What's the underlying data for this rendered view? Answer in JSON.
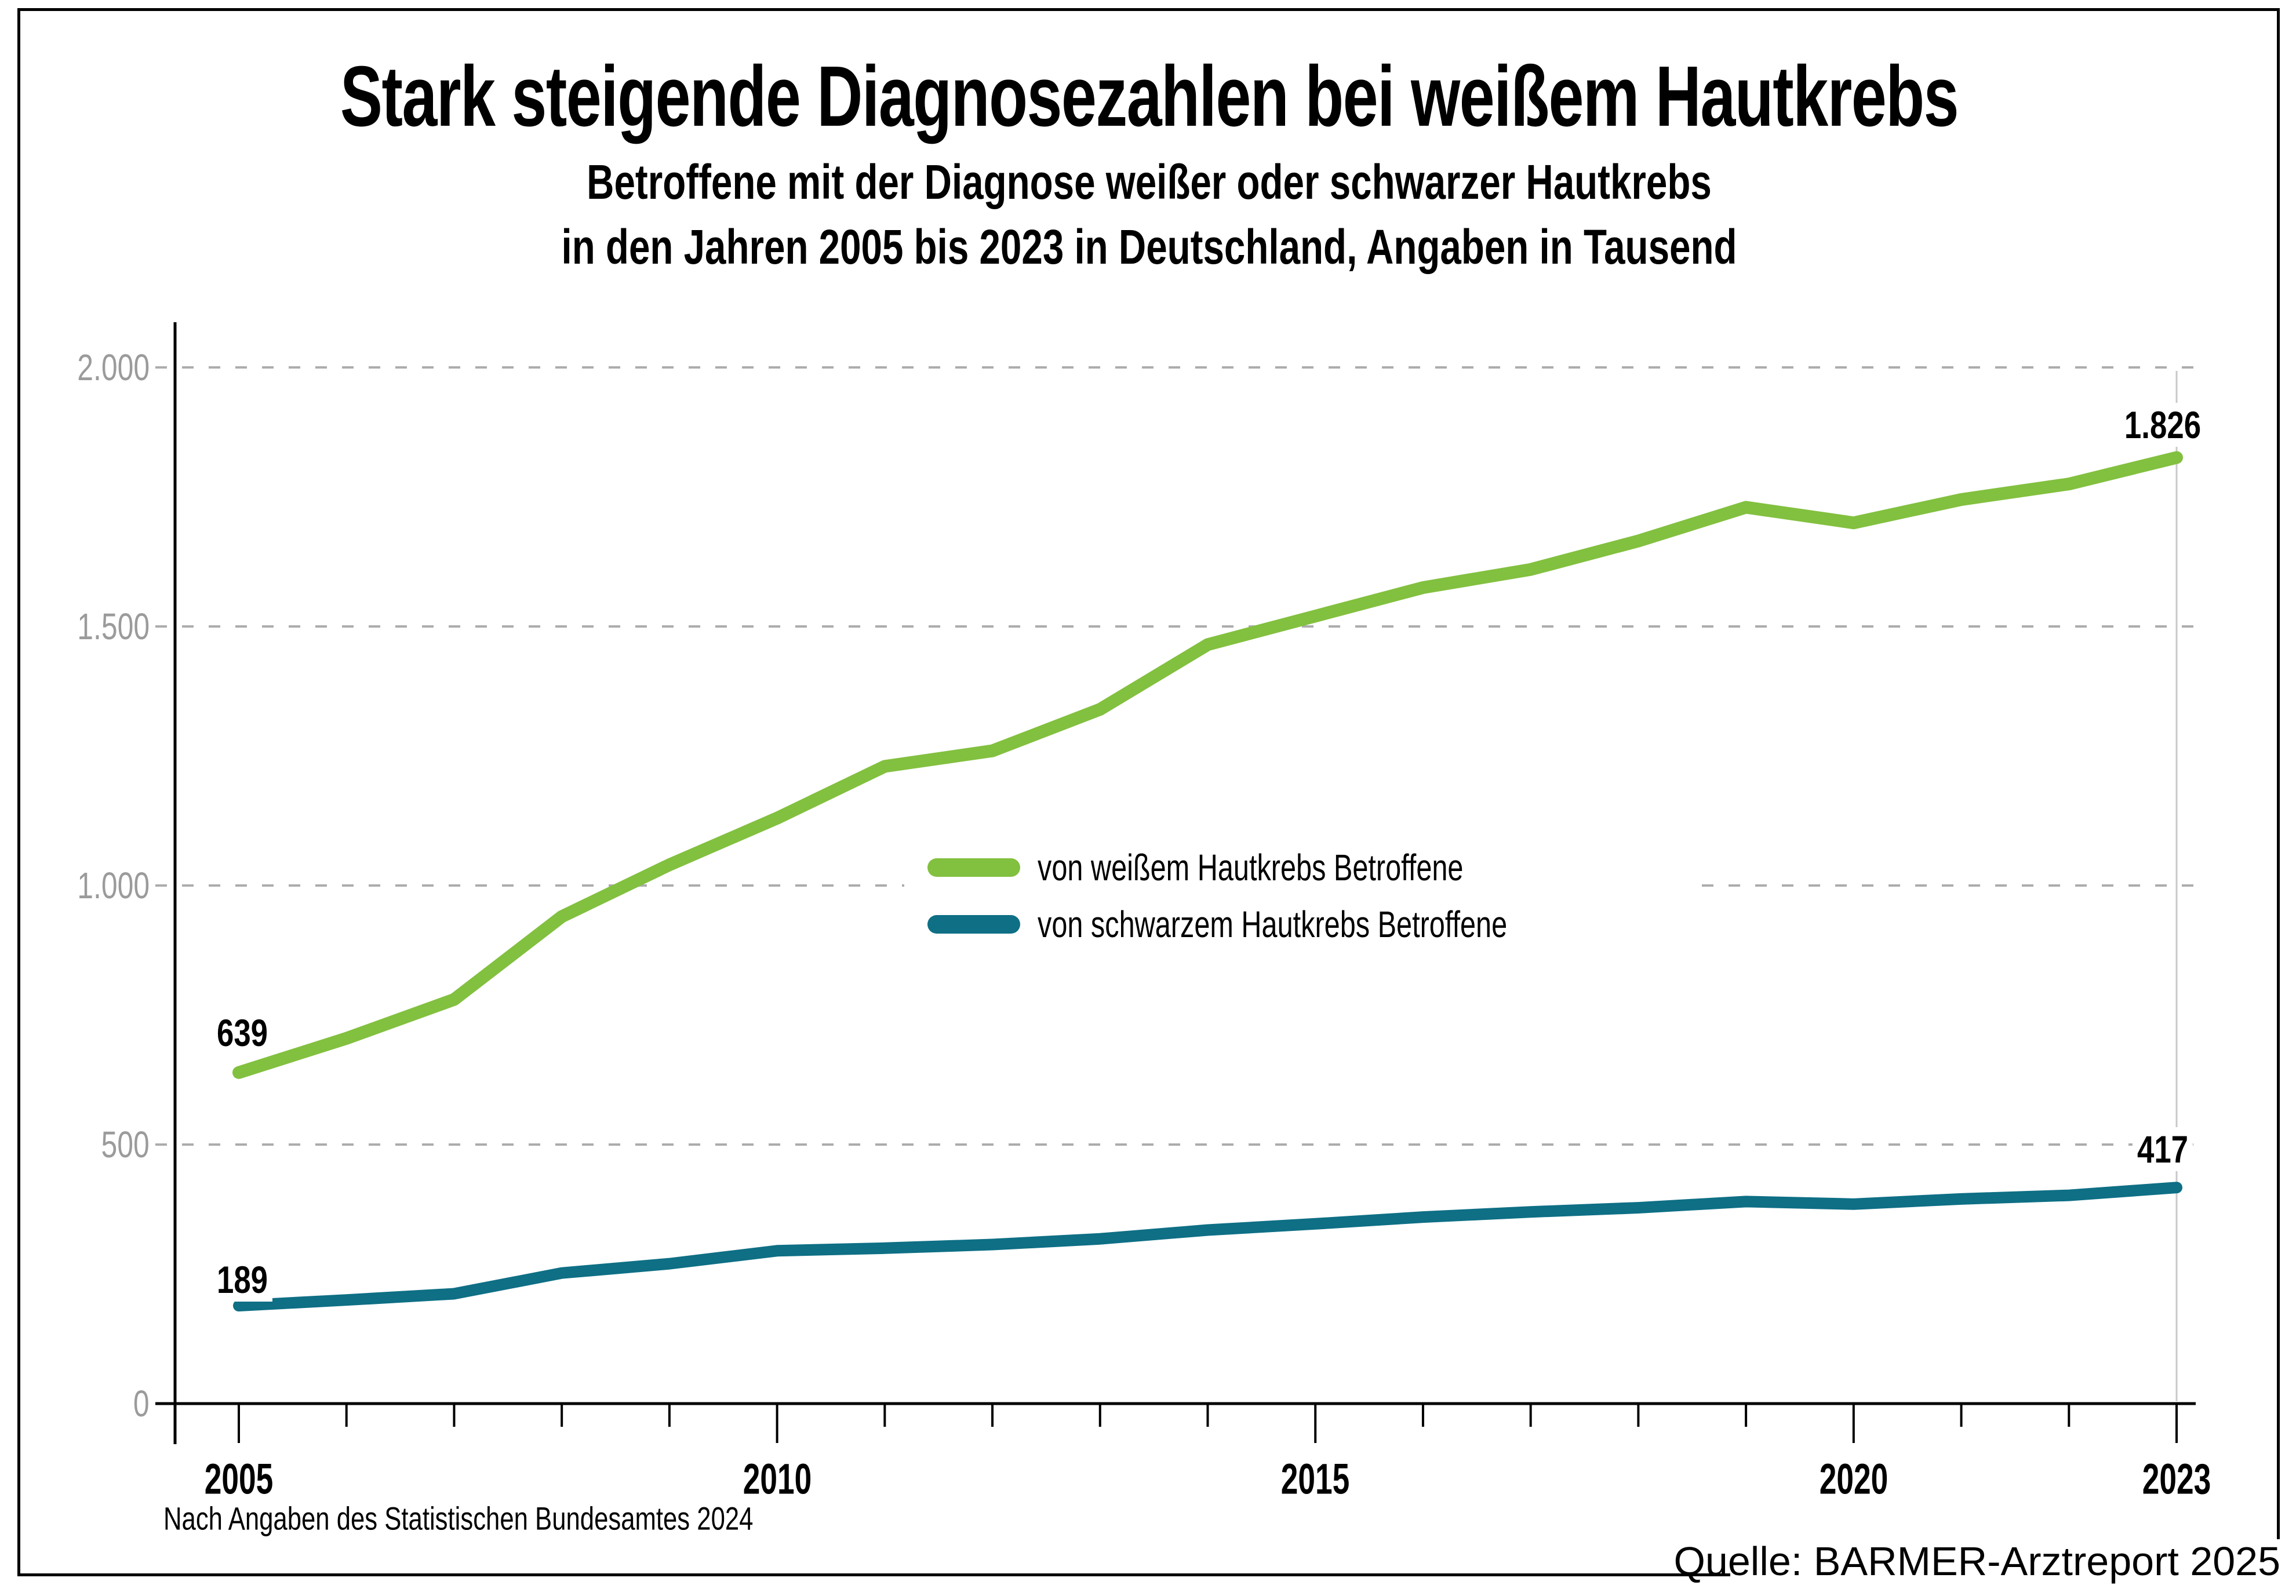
{
  "title": "Stark steigende Diagnosezahlen bei weißem Hautkrebs",
  "subtitle_line1": "Betroffene mit der Diagnose weißer oder schwarzer Hautkrebs",
  "subtitle_line2": "in den Jahren 2005 bis 2023 in Deutschland, Angaben in Tausend",
  "footnote": "Nach Angaben des Statistischen Bundesamtes 2024",
  "source": "Quelle: BARMER-Arztreport 2025",
  "colors": {
    "white_skin_cancer_line": "#82C03F",
    "black_skin_cancer_line": "#0E6F85",
    "gridline": "#ACACAC",
    "axis": "#000000",
    "y_tick_label": "#9B9B9B",
    "final_year_line": "#C9C9C9"
  },
  "chart_data": {
    "type": "line",
    "x": [
      2005,
      2006,
      2007,
      2008,
      2009,
      2010,
      2011,
      2012,
      2013,
      2014,
      2015,
      2016,
      2017,
      2018,
      2019,
      2020,
      2021,
      2022,
      2023
    ],
    "x_labeled_ticks": [
      2005,
      2010,
      2015,
      2020,
      2023
    ],
    "y_ticks": [
      0,
      500,
      1000,
      1500,
      2000
    ],
    "y_tick_labels": [
      "0",
      "500",
      "1.000",
      "1.500",
      "2.000"
    ],
    "ylim": [
      0,
      2000
    ],
    "grid": "horizontal-dashed",
    "legend_position": "center",
    "series": [
      {
        "name": "von weißem Hautkrebs Betroffene",
        "color_key": "white_skin_cancer_line",
        "values": [
          639,
          705,
          780,
          940,
          1040,
          1130,
          1230,
          1260,
          1340,
          1465,
          1520,
          1575,
          1610,
          1665,
          1730,
          1700,
          1745,
          1775,
          1826
        ],
        "first_label": "639",
        "last_label": "1.826"
      },
      {
        "name": "von schwarzem Hautkrebs Betroffene",
        "color_key": "black_skin_cancer_line",
        "values": [
          189,
          200,
          212,
          252,
          270,
          295,
          300,
          307,
          318,
          335,
          347,
          360,
          370,
          378,
          390,
          385,
          395,
          402,
          417
        ],
        "first_label": "189",
        "last_label": "417"
      }
    ]
  }
}
